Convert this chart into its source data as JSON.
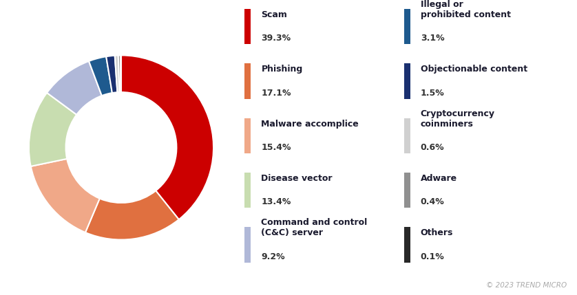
{
  "labels": [
    "Scam",
    "Phishing",
    "Malware accomplice",
    "Disease vector",
    "Command and control\n(C&C) server",
    "Illegal or\nprohibited content",
    "Objectionable content",
    "Cryptocurrency\ncoinminers",
    "Adware",
    "Others"
  ],
  "values": [
    39.3,
    17.1,
    15.4,
    13.4,
    9.2,
    3.1,
    1.5,
    0.6,
    0.4,
    0.1
  ],
  "colors": [
    "#cc0000",
    "#e07040",
    "#f0a888",
    "#c8ddb0",
    "#b0b8d8",
    "#1e5a8e",
    "#1a3070",
    "#d0d0d0",
    "#909090",
    "#282828"
  ],
  "legend_labels_left": [
    "Scam",
    "Phishing",
    "Malware accomplice",
    "Disease vector",
    "Command and control\n(C&C) server"
  ],
  "legend_values_left": [
    "39.3%",
    "17.1%",
    "15.4%",
    "13.4%",
    "9.2%"
  ],
  "legend_labels_right": [
    "Illegal or\nprohibited content",
    "Objectionable content",
    "Cryptocurrency\ncoinminers",
    "Adware",
    "Others"
  ],
  "legend_values_right": [
    "3.1%",
    "1.5%",
    "0.6%",
    "0.4%",
    "0.1%"
  ],
  "legend_colors_left": [
    "#cc0000",
    "#e07040",
    "#f0a888",
    "#c8ddb0",
    "#b0b8d8"
  ],
  "legend_colors_right": [
    "#1e5a8e",
    "#1a3070",
    "#d0d0d0",
    "#909090",
    "#282828"
  ],
  "background_color": "#ffffff",
  "copyright_text": "© 2023 TREND MICRO",
  "copyright_color": "#aaaaaa",
  "text_label_color": "#1a1a2e",
  "text_value_color": "#333333"
}
